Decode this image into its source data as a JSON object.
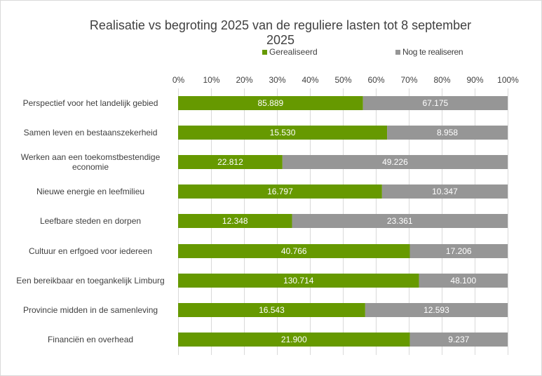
{
  "chart_data": {
    "type": "bar",
    "orientation": "horizontal",
    "stacked": "100%",
    "title": "Realisatie vs begroting 2025 van de reguliere lasten tot 8 september 2025",
    "title_lines": [
      "Realisatie vs begroting 2025 van de reguliere lasten tot 8 september",
      "2025"
    ],
    "categories": [
      "Perspectief voor het landelijk gebied",
      "Samen leven en bestaanszekerheid",
      "Werken aan een toekomstbestendige economie",
      "Nieuwe energie en leefmilieu",
      "Leefbare steden en dorpen",
      "Cultuur en erfgoed voor iedereen",
      "Een bereikbaar en toegankelijk Limburg",
      "Provincie midden in de samenleving",
      "Financiën en overhead"
    ],
    "category_lines": [
      [
        "Perspectief voor het landelijk gebied"
      ],
      [
        "Samen leven en bestaanszekerheid"
      ],
      [
        "Werken aan een toekomstbestendige",
        "economie"
      ],
      [
        "Nieuwe energie en leefmilieu"
      ],
      [
        "Leefbare steden en dorpen"
      ],
      [
        "Cultuur en erfgoed voor iedereen"
      ],
      [
        "Een bereikbaar en toegankelijk Limburg"
      ],
      [
        "Provincie midden in de samenleving"
      ],
      [
        "Financiën en overhead"
      ]
    ],
    "series": [
      {
        "name": "Gerealiseerd",
        "color": "#669900",
        "values": [
          85889,
          15530,
          22812,
          16797,
          12348,
          40766,
          130714,
          16543,
          21900
        ],
        "labels": [
          "85.889",
          "15.530",
          "22.812",
          "16.797",
          "12.348",
          "40.766",
          "130.714",
          "16.543",
          "21.900"
        ]
      },
      {
        "name": "Nog te realiseren",
        "color": "#969696",
        "values": [
          67175,
          8958,
          49226,
          10347,
          23361,
          17206,
          48100,
          12593,
          9237
        ],
        "labels": [
          "67.175",
          "8.958",
          "49.226",
          "10.347",
          "23.361",
          "17.206",
          "48.100",
          "12.593",
          "9.237"
        ]
      }
    ],
    "xaxis": {
      "range": [
        0,
        100
      ],
      "ticks": [
        "0%",
        "10%",
        "20%",
        "30%",
        "40%",
        "50%",
        "60%",
        "70%",
        "80%",
        "90%",
        "100%"
      ],
      "position": "top"
    },
    "grid": true,
    "legend_position": "top"
  }
}
